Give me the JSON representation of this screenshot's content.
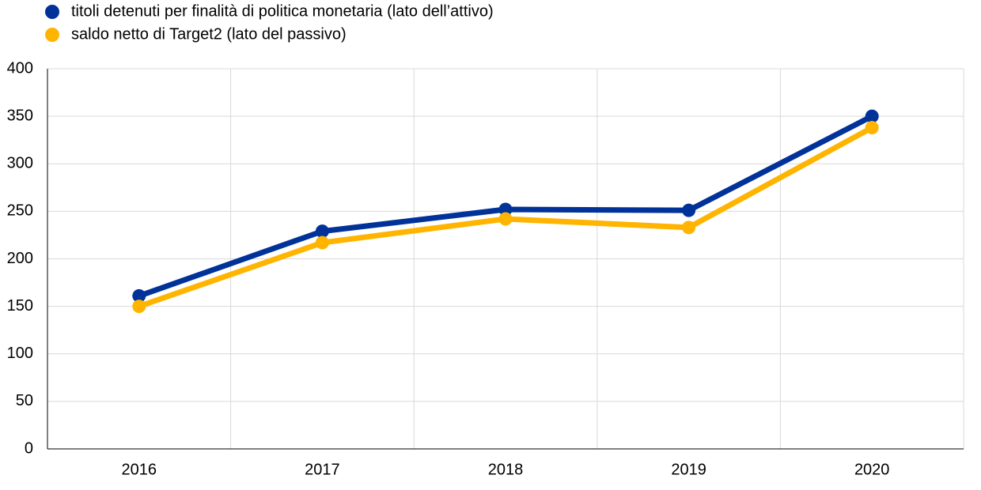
{
  "chart_data": {
    "type": "line",
    "categories": [
      "2016",
      "2017",
      "2018",
      "2019",
      "2020"
    ],
    "series": [
      {
        "name": "titoli detenuti per finalità di politica monetaria (lato dell’attivo)",
        "color": "#003299",
        "values": [
          161,
          229,
          252,
          251,
          350
        ]
      },
      {
        "name": "saldo netto di Target2 (lato del passivo)",
        "color": "#ffb400",
        "values": [
          150,
          217,
          242,
          233,
          338
        ]
      }
    ],
    "ylim": [
      0,
      400
    ],
    "yticks": [
      0,
      50,
      100,
      150,
      200,
      250,
      300,
      350,
      400
    ],
    "grid": true
  }
}
